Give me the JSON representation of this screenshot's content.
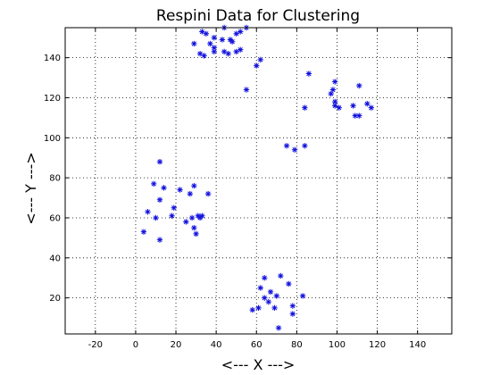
{
  "chart_data": {
    "type": "scatter",
    "title": "Respini Data for Clustering",
    "xlabel": "<--- X --->",
    "ylabel": "<--- Y --->",
    "xlim": [
      -35,
      157
    ],
    "ylim": [
      2,
      155
    ],
    "xticks": [
      -20,
      0,
      20,
      40,
      60,
      80,
      100,
      120,
      140
    ],
    "yticks": [
      20,
      40,
      60,
      80,
      100,
      120,
      140
    ],
    "grid": true,
    "marker": "*",
    "marker_color": "#1010dd",
    "points": [
      [
        29,
        147
      ],
      [
        33,
        153
      ],
      [
        35,
        152
      ],
      [
        37,
        147
      ],
      [
        39,
        150
      ],
      [
        43,
        149
      ],
      [
        44,
        155
      ],
      [
        47,
        149
      ],
      [
        50,
        152
      ],
      [
        52,
        153
      ],
      [
        55,
        155
      ],
      [
        32,
        142
      ],
      [
        34,
        141
      ],
      [
        39,
        143
      ],
      [
        39,
        145
      ],
      [
        44,
        143
      ],
      [
        46,
        142
      ],
      [
        50,
        143
      ],
      [
        52,
        144
      ],
      [
        48,
        148
      ],
      [
        55,
        124
      ],
      [
        60,
        136
      ],
      [
        62,
        139
      ],
      [
        86,
        132
      ],
      [
        84,
        115
      ],
      [
        97,
        122
      ],
      [
        98,
        124
      ],
      [
        99,
        128
      ],
      [
        99,
        118
      ],
      [
        99,
        116
      ],
      [
        101,
        115
      ],
      [
        108,
        116
      ],
      [
        109,
        111
      ],
      [
        111,
        111
      ],
      [
        111,
        126
      ],
      [
        115,
        117
      ],
      [
        117,
        115
      ],
      [
        75,
        96
      ],
      [
        79,
        94
      ],
      [
        84,
        96
      ],
      [
        12,
        88
      ],
      [
        9,
        77
      ],
      [
        14,
        75
      ],
      [
        6,
        63
      ],
      [
        4,
        53
      ],
      [
        10,
        60
      ],
      [
        12,
        69
      ],
      [
        12,
        49
      ],
      [
        18,
        61
      ],
      [
        19,
        65
      ],
      [
        22,
        74
      ],
      [
        25,
        58
      ],
      [
        27,
        72
      ],
      [
        28,
        60
      ],
      [
        29,
        76
      ],
      [
        29,
        55
      ],
      [
        30,
        52
      ],
      [
        31,
        61
      ],
      [
        32,
        60
      ],
      [
        33,
        61
      ],
      [
        36,
        72
      ],
      [
        58,
        14
      ],
      [
        61,
        15
      ],
      [
        62,
        25
      ],
      [
        64,
        30
      ],
      [
        64,
        20
      ],
      [
        66,
        18
      ],
      [
        67,
        23
      ],
      [
        69,
        15
      ],
      [
        70,
        21
      ],
      [
        71,
        5
      ],
      [
        72,
        31
      ],
      [
        76,
        27
      ],
      [
        78,
        12
      ],
      [
        78,
        16
      ],
      [
        83,
        21
      ]
    ]
  }
}
